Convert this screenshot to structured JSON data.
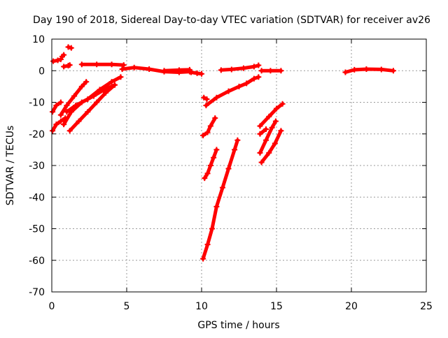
{
  "chart_data": {
    "type": "scatter",
    "title": "Day 190 of 2018, Sidereal Day-to-day VTEC variation (SDTVAR) for receiver av26",
    "xlabel": "GPS time / hours",
    "ylabel": "SDTVAR / TECUs",
    "xlim": [
      0,
      25
    ],
    "ylim": [
      -70,
      10
    ],
    "xticks": [
      0,
      5,
      10,
      15,
      20,
      25
    ],
    "yticks": [
      10,
      0,
      -10,
      -20,
      -30,
      -40,
      -50,
      -60,
      -70
    ],
    "grid": true,
    "grid_style": "dotted",
    "marker_color": "#ff0000",
    "series": [
      {
        "points": [
          [
            0.05,
            -13
          ],
          [
            0.3,
            -11
          ],
          [
            0.6,
            -10
          ]
        ]
      },
      {
        "points": [
          [
            0.05,
            -19
          ],
          [
            0.3,
            -17
          ],
          [
            0.6,
            -16
          ],
          [
            0.9,
            -15
          ]
        ]
      },
      {
        "points": [
          [
            0.1,
            3
          ],
          [
            0.4,
            3.3
          ],
          [
            0.6,
            3.6
          ]
        ]
      },
      {
        "points": [
          [
            0.7,
            4.5
          ],
          [
            0.8,
            5
          ]
        ]
      },
      {
        "points": [
          [
            0.8,
            1.3
          ],
          [
            1.1,
            1.6
          ],
          [
            1.2,
            1.8
          ]
        ]
      },
      {
        "points": [
          [
            1.1,
            7.5
          ],
          [
            1.3,
            7.2
          ]
        ]
      },
      {
        "points": [
          [
            0.6,
            -14
          ],
          [
            1.0,
            -11
          ],
          [
            1.5,
            -8
          ],
          [
            2.0,
            -5
          ],
          [
            2.3,
            -3.5
          ]
        ]
      },
      {
        "points": [
          [
            0.8,
            -17
          ],
          [
            1.3,
            -13
          ],
          [
            2.0,
            -10
          ],
          [
            2.8,
            -8
          ],
          [
            3.5,
            -6
          ],
          [
            4.2,
            -4.5
          ]
        ]
      },
      {
        "points": [
          [
            1.2,
            -19
          ],
          [
            1.8,
            -16
          ],
          [
            2.4,
            -13
          ],
          [
            3.0,
            -10
          ],
          [
            3.6,
            -7
          ],
          [
            4.2,
            -4.5
          ]
        ]
      },
      {
        "points": [
          [
            1.0,
            -13
          ],
          [
            1.6,
            -11
          ],
          [
            2.4,
            -9
          ],
          [
            3.2,
            -6
          ],
          [
            4.0,
            -3.5
          ],
          [
            4.6,
            -2
          ]
        ]
      },
      {
        "points": [
          [
            2.0,
            2
          ],
          [
            3.0,
            2
          ],
          [
            4.0,
            2
          ],
          [
            4.8,
            1.8
          ]
        ]
      },
      {
        "points": [
          [
            4.7,
            0.5
          ],
          [
            5.5,
            1
          ],
          [
            6.5,
            0.5
          ],
          [
            7.5,
            -0.3
          ],
          [
            8.5,
            -0.5
          ],
          [
            9.2,
            -0.3
          ]
        ]
      },
      {
        "points": [
          [
            7.5,
            0
          ],
          [
            8.5,
            0.2
          ],
          [
            9.2,
            0.3
          ]
        ]
      },
      {
        "points": [
          [
            9.3,
            -0.5
          ],
          [
            9.7,
            -0.8
          ],
          [
            10.0,
            -1
          ]
        ]
      },
      {
        "points": [
          [
            10.15,
            -8.5
          ],
          [
            10.35,
            -9
          ]
        ]
      },
      {
        "points": [
          [
            10.3,
            -11
          ],
          [
            11.0,
            -8.5
          ],
          [
            11.8,
            -6.5
          ],
          [
            12.5,
            -5
          ],
          [
            13.0,
            -4
          ],
          [
            13.5,
            -2.5
          ],
          [
            13.8,
            -2
          ]
        ]
      },
      {
        "points": [
          [
            10.1,
            -20.5
          ],
          [
            10.4,
            -19.5
          ],
          [
            10.6,
            -17.5
          ],
          [
            10.9,
            -15
          ]
        ]
      },
      {
        "points": [
          [
            10.2,
            -34
          ],
          [
            10.4,
            -32.5
          ],
          [
            10.6,
            -30
          ],
          [
            10.8,
            -27.5
          ],
          [
            11.0,
            -25
          ]
        ]
      },
      {
        "points": [
          [
            10.1,
            -59.5
          ],
          [
            10.4,
            -55
          ],
          [
            10.7,
            -50
          ],
          [
            11.0,
            -43
          ],
          [
            11.4,
            -37
          ],
          [
            11.8,
            -31
          ],
          [
            12.2,
            -25
          ],
          [
            12.4,
            -22
          ]
        ]
      },
      {
        "points": [
          [
            11.3,
            0.2
          ],
          [
            12.0,
            0.4
          ],
          [
            12.8,
            0.8
          ],
          [
            13.5,
            1.3
          ],
          [
            13.8,
            1.7
          ]
        ]
      },
      {
        "points": [
          [
            14.0,
            0
          ],
          [
            14.6,
            0
          ],
          [
            15.3,
            0
          ]
        ]
      },
      {
        "points": [
          [
            13.9,
            -17.5
          ],
          [
            14.5,
            -14.5
          ],
          [
            15.0,
            -12
          ],
          [
            15.4,
            -10.5
          ]
        ]
      },
      {
        "points": [
          [
            13.9,
            -20
          ],
          [
            14.3,
            -18.5
          ]
        ]
      },
      {
        "points": [
          [
            13.9,
            -26
          ],
          [
            14.3,
            -22
          ],
          [
            14.7,
            -18
          ],
          [
            14.95,
            -16
          ]
        ]
      },
      {
        "points": [
          [
            14.0,
            -29
          ],
          [
            14.5,
            -26
          ],
          [
            14.9,
            -23
          ],
          [
            15.3,
            -19
          ]
        ]
      },
      {
        "points": [
          [
            19.6,
            -0.5
          ],
          [
            20.2,
            0.3
          ],
          [
            21.0,
            0.5
          ],
          [
            22.0,
            0.4
          ],
          [
            22.8,
            0
          ]
        ]
      }
    ]
  }
}
